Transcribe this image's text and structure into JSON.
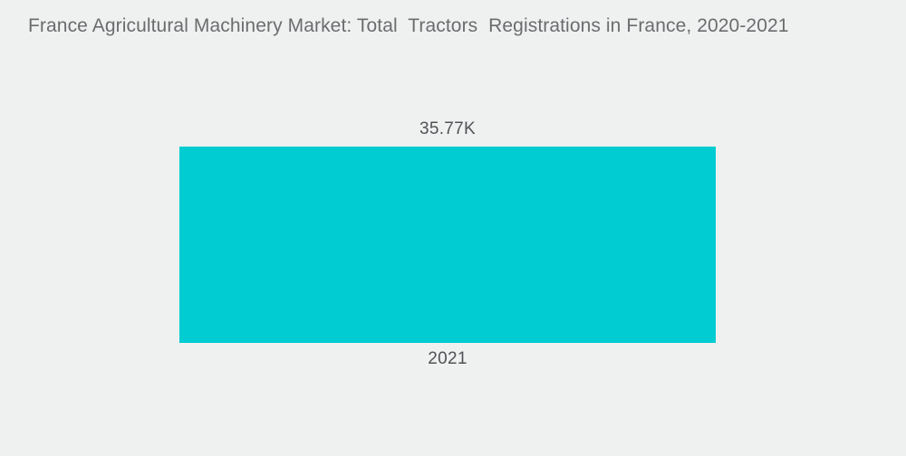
{
  "page": {
    "background_color": "#eff1f1",
    "title_color": "#6b6c6e",
    "label_color": "#515255"
  },
  "chart_data": {
    "type": "bar",
    "title": "France Agricultural Machinery Market: Total  Tractors  Registrations in France, 2020-2021",
    "categories": [
      "2021"
    ],
    "values": [
      35770
    ],
    "value_labels": [
      "35.77K"
    ],
    "unit": "K",
    "bar_color": "#00CCD2",
    "orientation": "vertical",
    "xlabel": "",
    "ylabel": "",
    "legend_position": "none",
    "grid": false,
    "axes_visible": false
  }
}
